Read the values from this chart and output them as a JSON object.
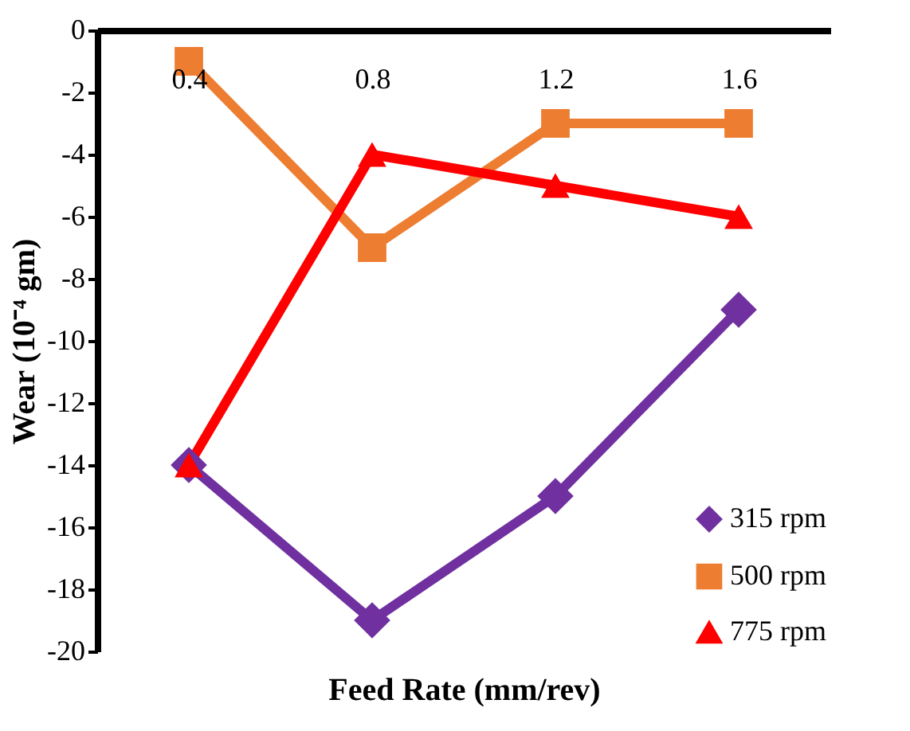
{
  "chart_data": {
    "type": "line",
    "xlabel": "Feed Rate (mm/rev)",
    "ylabel": "Wear (10⁻⁴ gm)",
    "categories": [
      "0.4",
      "0.8",
      "1.2",
      "1.6"
    ],
    "series": [
      {
        "name": "315 rpm",
        "color": "#7030a0",
        "marker": "diamond",
        "values": [
          -14,
          -19,
          -15,
          -9
        ]
      },
      {
        "name": "500 rpm",
        "color": "#ed7d31",
        "marker": "square",
        "values": [
          -1,
          -7,
          -3,
          -3
        ]
      },
      {
        "name": "775 rpm",
        "color": "#ff0000",
        "marker": "triangle",
        "values": [
          -14,
          -4,
          -5,
          -6
        ]
      }
    ],
    "ylim": [
      -20,
      0
    ],
    "yticks": [
      -20,
      -18,
      -16,
      -14,
      -12,
      -10,
      -8,
      -6,
      -4,
      -2,
      0
    ],
    "grid": false,
    "legend": "bottom right",
    "line_style": "solid"
  }
}
